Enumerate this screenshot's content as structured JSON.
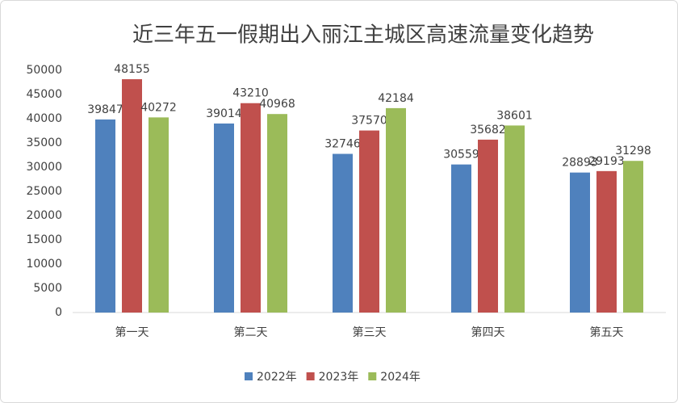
{
  "chart_data": {
    "type": "bar",
    "title": "近三年五一假期出入丽江主城区高速流量变化趋势",
    "categories": [
      "第一天",
      "第二天",
      "第三天",
      "第四天",
      "第五天"
    ],
    "series": [
      {
        "name": "2022年",
        "color": "#4f81bd",
        "values": [
          39847,
          39014,
          32746,
          30559,
          28893
        ]
      },
      {
        "name": "2023年",
        "color": "#c0504d",
        "values": [
          48155,
          43210,
          37570,
          35682,
          29193
        ]
      },
      {
        "name": "2024年",
        "color": "#9bbb59",
        "values": [
          40272,
          40968,
          42184,
          38601,
          31298
        ]
      }
    ],
    "ylim": [
      0,
      50000
    ],
    "yticks": [
      0,
      5000,
      10000,
      15000,
      20000,
      25000,
      30000,
      35000,
      40000,
      45000,
      50000
    ],
    "grid": false,
    "legend": "bottom"
  }
}
